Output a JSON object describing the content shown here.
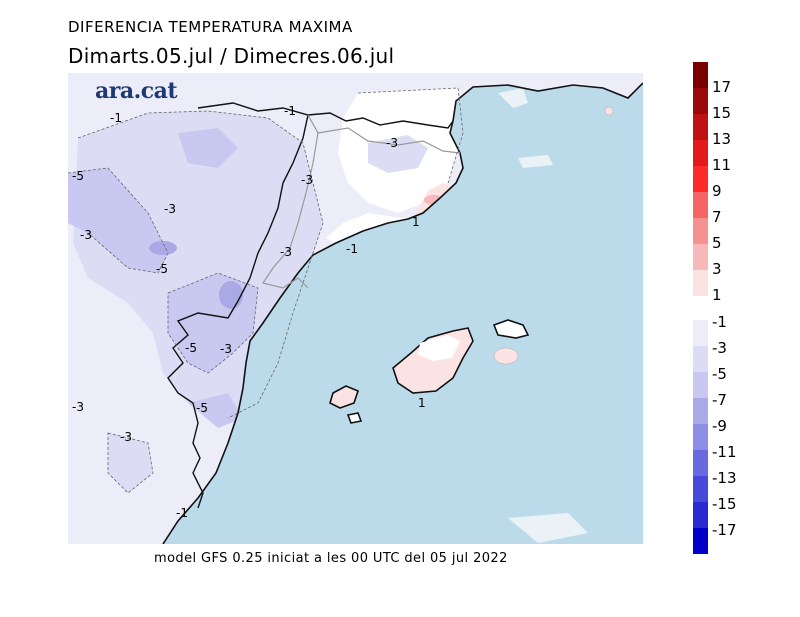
{
  "header": {
    "title": "DIFERENCIA TEMPERATURA MAXIMA",
    "subtitle": "Dimarts.05.jul / Dimecres.06.jul"
  },
  "logo": {
    "text": "ara.cat"
  },
  "footer": {
    "text": "model GFS 0.25 iniciat a les 00 UTC del 05 jul 2022"
  },
  "map": {
    "colors": {
      "sea": "#bcdbea",
      "land_neutral": "#ffffff",
      "warm_1": "#fbe3e3",
      "warm_3": "#f6b8b8",
      "cool_1": "#ededfa",
      "cool_3": "#dcdcf5",
      "cool_5": "#c8c8f0",
      "cool_7": "#a9a9e6"
    },
    "contour_labels": [
      {
        "id": "l1",
        "text": "-1"
      },
      {
        "id": "l2",
        "text": "-1"
      },
      {
        "id": "l3",
        "text": "-3"
      },
      {
        "id": "l4",
        "text": "-5"
      },
      {
        "id": "l5",
        "text": "-3"
      },
      {
        "id": "l6",
        "text": "-3"
      },
      {
        "id": "l7",
        "text": "-3"
      },
      {
        "id": "l8",
        "text": "-5"
      },
      {
        "id": "l9",
        "text": "-3"
      },
      {
        "id": "l10",
        "text": "1"
      },
      {
        "id": "l11",
        "text": "-1"
      },
      {
        "id": "l12",
        "text": "-5"
      },
      {
        "id": "l13",
        "text": "-3"
      },
      {
        "id": "l14",
        "text": "-3"
      },
      {
        "id": "l15",
        "text": "-5"
      },
      {
        "id": "l16",
        "text": "-3"
      },
      {
        "id": "l17",
        "text": "1"
      },
      {
        "id": "l18",
        "text": "-1"
      }
    ]
  },
  "legend": {
    "warm": [
      {
        "label": "17",
        "color": "#7a0000"
      },
      {
        "label": "15",
        "color": "#9b0a0a"
      },
      {
        "label": "13",
        "color": "#bf1212"
      },
      {
        "label": "11",
        "color": "#e21a1a"
      },
      {
        "label": "9",
        "color": "#ff2a2a"
      },
      {
        "label": "7",
        "color": "#f56565"
      },
      {
        "label": "5",
        "color": "#f59191"
      },
      {
        "label": "3",
        "color": "#f6b8b8"
      },
      {
        "label": "1",
        "color": "#fbe3e3"
      }
    ],
    "cool": [
      {
        "label": "-1",
        "color": "#ededfa"
      },
      {
        "label": "-3",
        "color": "#dcdcf5"
      },
      {
        "label": "-5",
        "color": "#c8c8f0"
      },
      {
        "label": "-7",
        "color": "#a9a9e6"
      },
      {
        "label": "-9",
        "color": "#8e8ee6"
      },
      {
        "label": "-11",
        "color": "#6a6ae0"
      },
      {
        "label": "-13",
        "color": "#4949d8"
      },
      {
        "label": "-15",
        "color": "#2a2ad2"
      },
      {
        "label": "-17",
        "color": "#0000c8"
      }
    ]
  }
}
